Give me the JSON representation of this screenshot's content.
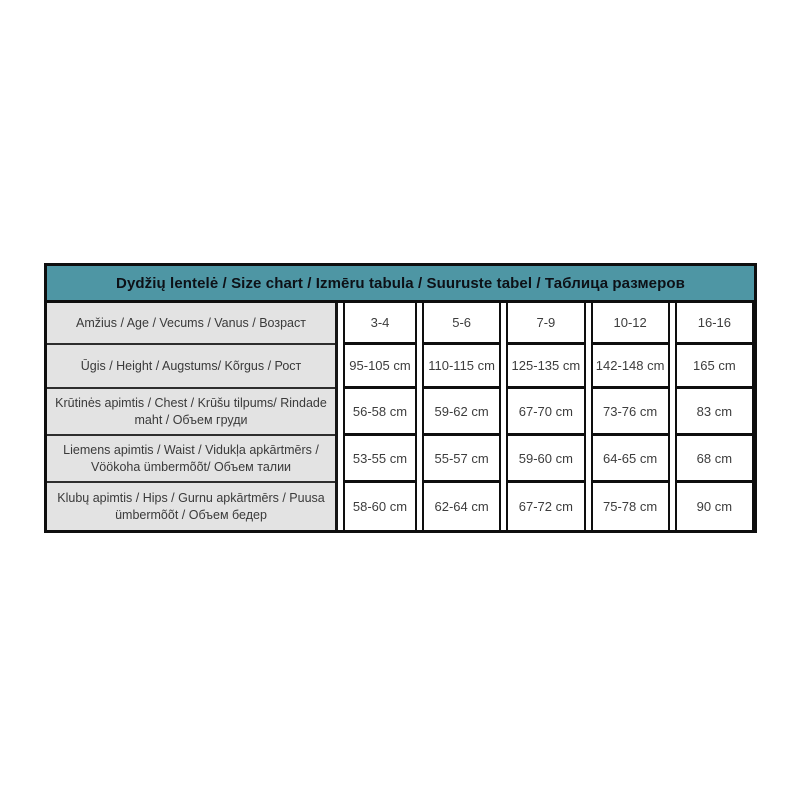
{
  "table": {
    "title": "Dydžių lentelė / Size chart / Izmēru tabula / Suuruste tabel / Таблица размеров",
    "header_bg": "#4e96a4",
    "label_bg": "#e3e3e3",
    "border_color": "#0e0e0e",
    "rows": [
      {
        "label": "Amžius / Age / Vecums / Vanus / Возраст",
        "values": [
          "3-4",
          "5-6",
          "7-9",
          "10-12",
          "16-16"
        ]
      },
      {
        "label": "Ūgis / Height / Augstums/ Kõrgus / Рост",
        "values": [
          "95-105 cm",
          "110-115 cm",
          "125-135 cm",
          "142-148 cm",
          "165 cm"
        ]
      },
      {
        "label": "Krūtinės apimtis / Chest / Krūšu tilpums/ Rindade maht / Объем груди",
        "values": [
          "56-58 cm",
          "59-62 cm",
          "67-70 cm",
          "73-76 cm",
          "83 cm"
        ]
      },
      {
        "label": "Liemens apimtis / Waist / Vidukļa apkārtmērs / Vöökoha ümbermõõt/ Объем талии",
        "values": [
          "53-55 cm",
          "55-57 cm",
          "59-60 cm",
          "64-65 cm",
          "68 cm"
        ]
      },
      {
        "label": "Klubų apimtis / Hips / Gurnu apkārtmērs / Puusa ümbermõõt / Объем бедер",
        "values": [
          "58-60 cm",
          "62-64 cm",
          "67-72 cm",
          "75-78 cm",
          "90 cm"
        ]
      }
    ]
  }
}
